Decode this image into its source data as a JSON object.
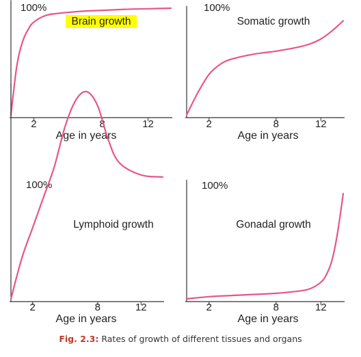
{
  "caption": {
    "label": "Fig. 2.3:",
    "text": "Rates of growth of different tissues and organs"
  },
  "colors": {
    "curve": "#e8548a",
    "axis": "#333333",
    "highlight": "#ffff00",
    "caption_label": "#c0392b"
  },
  "chart_data": [
    {
      "type": "line",
      "title": "Brain growth",
      "title_highlight": true,
      "xlabel": "Age in years",
      "ylabel_mark": "100%",
      "xlim": [
        0,
        14
      ],
      "ylim": [
        0,
        100
      ],
      "xticks": [
        2,
        8,
        12
      ],
      "series": [
        {
          "x": [
            0,
            0.5,
            1,
            1.5,
            2,
            3,
            4,
            6,
            8,
            10,
            12,
            14
          ],
          "y": [
            0,
            45,
            68,
            80,
            87,
            93,
            95,
            97,
            98,
            99,
            99.5,
            100
          ]
        }
      ]
    },
    {
      "type": "line",
      "title": "Somatic growth",
      "title_highlight": false,
      "xlabel": "Age in years",
      "ylabel_mark": "100%",
      "xlim": [
        0,
        14
      ],
      "ylim": [
        0,
        100
      ],
      "xticks": [
        2,
        8,
        12
      ],
      "series": [
        {
          "x": [
            0,
            1,
            2,
            3,
            4,
            6,
            8,
            10,
            11,
            12,
            13,
            14
          ],
          "y": [
            0,
            22,
            40,
            50,
            55,
            60,
            63,
            67,
            70,
            75,
            83,
            93
          ]
        }
      ]
    },
    {
      "type": "line",
      "title": "Lymphoid growth",
      "title_highlight": false,
      "xlabel": "Age in years",
      "ylabel_mark": "100%",
      "xlim": [
        0,
        14
      ],
      "ylim": [
        0,
        100
      ],
      "xticks": [
        2,
        8,
        12
      ],
      "series": [
        {
          "x": [
            0,
            1,
            2,
            3,
            4,
            5,
            6,
            7,
            8,
            9,
            10,
            12,
            14
          ],
          "y": [
            0,
            20,
            35,
            50,
            65,
            85,
            98,
            102,
            95,
            78,
            67,
            61,
            60
          ]
        }
      ]
    },
    {
      "type": "line",
      "title": "Gonadal growth",
      "title_highlight": false,
      "xlabel": "Age in years",
      "ylabel_mark": "100%",
      "xlim": [
        0,
        14
      ],
      "ylim": [
        0,
        100
      ],
      "xticks": [
        2,
        8,
        12
      ],
      "series": [
        {
          "x": [
            0,
            2,
            4,
            6,
            8,
            10,
            11,
            12,
            12.5,
            13,
            13.5,
            14
          ],
          "y": [
            0,
            2,
            3,
            4,
            5,
            7,
            9,
            15,
            22,
            35,
            60,
            95
          ]
        }
      ]
    }
  ]
}
